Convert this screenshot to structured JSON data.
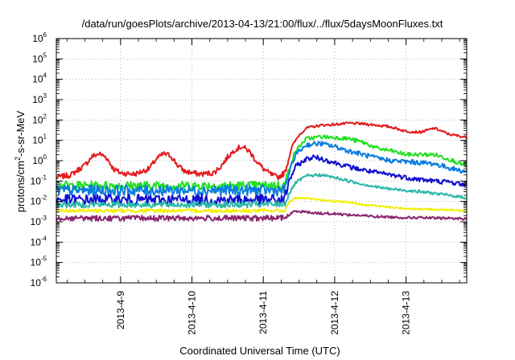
{
  "chart_data": {
    "type": "line",
    "title": "/data/run/goesPlots/archive/2013-04-13/21:00/flux/../flux/5daysMoonFluxes.txt",
    "xlabel": "Coordinated Universal Time (UTC)",
    "ylabel_parts": {
      "pre": "protons/cm",
      "sup": "2",
      "post": "-s-sr-MeV"
    },
    "yscale": "log",
    "ylim_exponents": [
      -6,
      6
    ],
    "y_ticks": [
      {
        "base": "10",
        "exp": "6"
      },
      {
        "base": "10",
        "exp": "5"
      },
      {
        "base": "10",
        "exp": "4"
      },
      {
        "base": "10",
        "exp": "3"
      },
      {
        "base": "10",
        "exp": "2"
      },
      {
        "base": "10",
        "exp": "1"
      },
      {
        "base": "10",
        "exp": "0"
      },
      {
        "base": "10",
        "exp": "-1"
      },
      {
        "base": "10",
        "exp": "-2"
      },
      {
        "base": "10",
        "exp": "-3"
      },
      {
        "base": "10",
        "exp": "-4"
      },
      {
        "base": "10",
        "exp": "-5"
      },
      {
        "base": "10",
        "exp": "-6"
      }
    ],
    "x_unit": "day",
    "xlim": [
      8.1,
      13.85
    ],
    "x_ticks": [
      {
        "label": "2013-4-9",
        "value": 9
      },
      {
        "label": "2013-4-10",
        "value": 10
      },
      {
        "label": "2013-4-11",
        "value": 11
      },
      {
        "label": "2013-4-12",
        "value": 12
      },
      {
        "label": "2013-4-13",
        "value": 13
      }
    ],
    "grid": true,
    "legend": "none",
    "series": [
      {
        "color": "#e41a1c",
        "noise": 0.06,
        "pts": [
          [
            8.1,
            0.15
          ],
          [
            8.3,
            0.2
          ],
          [
            8.5,
            0.6
          ],
          [
            8.6,
            1.6
          ],
          [
            8.7,
            2.2
          ],
          [
            8.8,
            1.5
          ],
          [
            8.9,
            0.4
          ],
          [
            9.0,
            0.25
          ],
          [
            9.2,
            0.22
          ],
          [
            9.4,
            0.4
          ],
          [
            9.5,
            1.2
          ],
          [
            9.6,
            2.2
          ],
          [
            9.7,
            1.8
          ],
          [
            9.8,
            0.6
          ],
          [
            9.9,
            0.3
          ],
          [
            10.1,
            0.22
          ],
          [
            10.3,
            0.25
          ],
          [
            10.4,
            0.5
          ],
          [
            10.5,
            1.5
          ],
          [
            10.6,
            3.5
          ],
          [
            10.7,
            5
          ],
          [
            10.8,
            3
          ],
          [
            10.9,
            1.0
          ],
          [
            11.0,
            0.4
          ],
          [
            11.1,
            0.22
          ],
          [
            11.2,
            0.15
          ],
          [
            11.3,
            0.25
          ],
          [
            11.35,
            1.0
          ],
          [
            11.4,
            5
          ],
          [
            11.5,
            18
          ],
          [
            11.6,
            40
          ],
          [
            11.8,
            55
          ],
          [
            12.0,
            60
          ],
          [
            12.2,
            70
          ],
          [
            12.4,
            65
          ],
          [
            12.6,
            55
          ],
          [
            12.8,
            45
          ],
          [
            12.9,
            35
          ],
          [
            13.0,
            28
          ],
          [
            13.2,
            25
          ],
          [
            13.4,
            40
          ],
          [
            13.6,
            20
          ],
          [
            13.85,
            14
          ]
        ]
      },
      {
        "color": "#20e020",
        "noise": 0.1,
        "pts": [
          [
            8.1,
            0.06
          ],
          [
            9.0,
            0.06
          ],
          [
            10.0,
            0.06
          ],
          [
            11.0,
            0.06
          ],
          [
            11.3,
            0.065
          ],
          [
            11.35,
            0.3
          ],
          [
            11.45,
            3
          ],
          [
            11.6,
            12
          ],
          [
            11.8,
            15
          ],
          [
            12.0,
            14
          ],
          [
            12.2,
            12
          ],
          [
            12.4,
            8
          ],
          [
            12.6,
            4
          ],
          [
            12.8,
            3
          ],
          [
            13.0,
            2
          ],
          [
            13.2,
            2
          ],
          [
            13.4,
            2
          ],
          [
            13.6,
            1.2
          ],
          [
            13.85,
            0.55
          ]
        ]
      },
      {
        "color": "#0a7de0",
        "noise": 0.12,
        "pts": [
          [
            8.1,
            0.035
          ],
          [
            9.0,
            0.035
          ],
          [
            10.0,
            0.035
          ],
          [
            11.0,
            0.035
          ],
          [
            11.3,
            0.035
          ],
          [
            11.35,
            0.2
          ],
          [
            11.45,
            2
          ],
          [
            11.6,
            6
          ],
          [
            11.8,
            7
          ],
          [
            12.0,
            5
          ],
          [
            12.2,
            3
          ],
          [
            12.4,
            2
          ],
          [
            12.6,
            1.3
          ],
          [
            12.8,
            1.0
          ],
          [
            13.0,
            0.9
          ],
          [
            13.2,
            0.8
          ],
          [
            13.4,
            0.7
          ],
          [
            13.6,
            0.45
          ],
          [
            13.85,
            0.28
          ]
        ]
      },
      {
        "color": "#1010d0",
        "noise": 0.12,
        "pts": [
          [
            8.1,
            0.012
          ],
          [
            9.0,
            0.012
          ],
          [
            10.0,
            0.012
          ],
          [
            11.0,
            0.012
          ],
          [
            11.3,
            0.012
          ],
          [
            11.35,
            0.08
          ],
          [
            11.45,
            0.5
          ],
          [
            11.6,
            1.2
          ],
          [
            11.7,
            1.5
          ],
          [
            11.8,
            1.3
          ],
          [
            12.0,
            0.8
          ],
          [
            12.2,
            0.5
          ],
          [
            12.4,
            0.35
          ],
          [
            12.6,
            0.25
          ],
          [
            12.8,
            0.2
          ],
          [
            13.0,
            0.15
          ],
          [
            13.2,
            0.12
          ],
          [
            13.4,
            0.1
          ],
          [
            13.6,
            0.09
          ],
          [
            13.85,
            0.065
          ]
        ]
      },
      {
        "color": "#2ab8a8",
        "noise": 0.07,
        "pts": [
          [
            8.1,
            0.007
          ],
          [
            9.0,
            0.007
          ],
          [
            10.0,
            0.007
          ],
          [
            11.0,
            0.007
          ],
          [
            11.3,
            0.0075
          ],
          [
            11.35,
            0.02
          ],
          [
            11.45,
            0.08
          ],
          [
            11.6,
            0.18
          ],
          [
            11.8,
            0.2
          ],
          [
            12.0,
            0.15
          ],
          [
            12.2,
            0.1
          ],
          [
            12.4,
            0.07
          ],
          [
            12.6,
            0.05
          ],
          [
            12.8,
            0.04
          ],
          [
            13.0,
            0.035
          ],
          [
            13.2,
            0.03
          ],
          [
            13.4,
            0.025
          ],
          [
            13.6,
            0.02
          ],
          [
            13.85,
            0.015
          ]
        ]
      },
      {
        "color": "#f0f000",
        "noise": 0.04,
        "pts": [
          [
            8.1,
            0.0035
          ],
          [
            9.0,
            0.0035
          ],
          [
            10.0,
            0.0035
          ],
          [
            11.0,
            0.0035
          ],
          [
            11.3,
            0.0035
          ],
          [
            11.35,
            0.008
          ],
          [
            11.45,
            0.015
          ],
          [
            11.6,
            0.014
          ],
          [
            11.8,
            0.012
          ],
          [
            12.0,
            0.01
          ],
          [
            12.2,
            0.009
          ],
          [
            12.4,
            0.007
          ],
          [
            12.6,
            0.006
          ],
          [
            12.8,
            0.005
          ],
          [
            13.0,
            0.0045
          ],
          [
            13.2,
            0.0042
          ],
          [
            13.4,
            0.004
          ],
          [
            13.6,
            0.0038
          ],
          [
            13.85,
            0.0035
          ]
        ]
      },
      {
        "color": "#8b2570",
        "noise": 0.06,
        "pts": [
          [
            8.1,
            0.0015
          ],
          [
            9.0,
            0.0015
          ],
          [
            10.0,
            0.0015
          ],
          [
            11.0,
            0.0015
          ],
          [
            11.3,
            0.0016
          ],
          [
            11.35,
            0.002
          ],
          [
            11.45,
            0.0035
          ],
          [
            11.6,
            0.003
          ],
          [
            11.8,
            0.0026
          ],
          [
            12.0,
            0.0025
          ],
          [
            12.2,
            0.0022
          ],
          [
            12.4,
            0.002
          ],
          [
            12.6,
            0.0018
          ],
          [
            12.8,
            0.0017
          ],
          [
            13.0,
            0.0016
          ],
          [
            13.2,
            0.0016
          ],
          [
            13.4,
            0.0015
          ],
          [
            13.6,
            0.0015
          ],
          [
            13.85,
            0.0014
          ]
        ]
      }
    ]
  }
}
